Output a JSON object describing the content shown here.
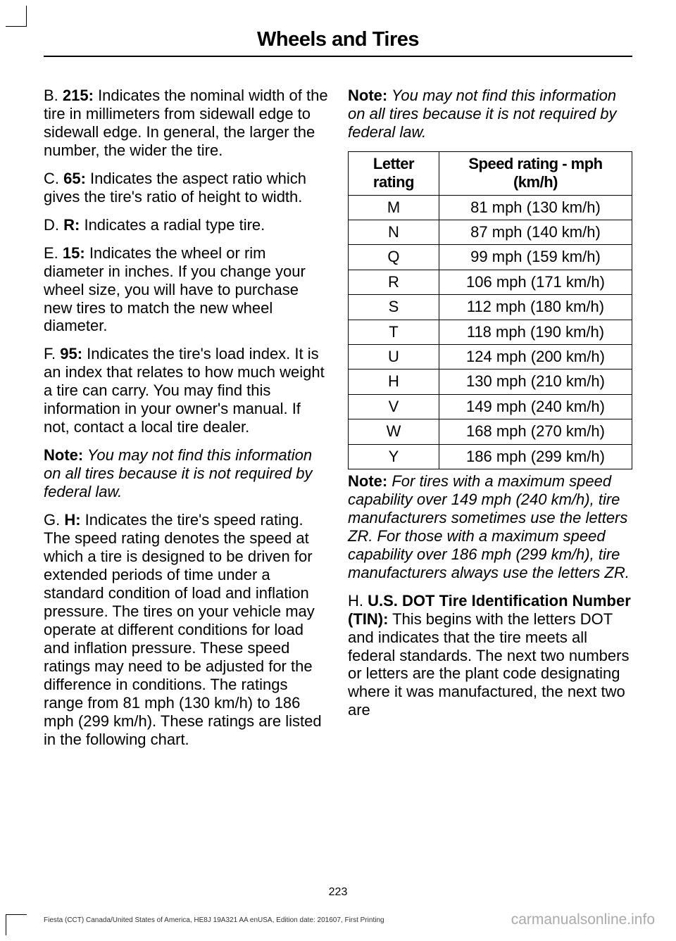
{
  "header": {
    "title": "Wheels and Tires"
  },
  "left": {
    "p1": {
      "pre": "B. ",
      "bold": "215:",
      "post": " Indicates the nominal width of the tire in millimeters from sidewall edge to sidewall edge. In general, the larger the number, the wider the tire."
    },
    "p2": {
      "pre": "C. ",
      "bold": "65:",
      "post": " Indicates the aspect ratio which gives the tire's ratio of height to width."
    },
    "p3": {
      "pre": "D. ",
      "bold": "R:",
      "post": " Indicates a radial type tire."
    },
    "p4": {
      "pre": "E. ",
      "bold": "15:",
      "post": " Indicates the wheel or rim diameter in inches. If you change your wheel size, you will have to purchase new tires to match the new wheel diameter."
    },
    "p5": {
      "pre": "F. ",
      "bold": "95:",
      "post": " Indicates the tire's load index. It is an index that relates to how much weight a tire can carry. You may find this information in your owner's manual. If not, contact a local tire dealer."
    },
    "note1": {
      "bold": "Note:",
      "post": " You may not find this information on all tires because it is not required by federal law."
    },
    "p6": {
      "pre": "G. ",
      "bold": "H:",
      "post": " Indicates the tire's speed rating. The speed rating denotes the speed at which a tire is designed to be driven for extended periods of time under a standard condition of load and inflation pressure. The tires on your vehicle may operate at different conditions for load and inflation pressure. These speed ratings may need to be adjusted for the difference in conditions. The ratings range from 81 mph (130 km/h) to 186 mph (299 km/h). These ratings are listed in the following chart."
    }
  },
  "right": {
    "note1": {
      "bold": "Note:",
      "post": " You may not find this information on all tires because it is not required by federal law."
    },
    "table": {
      "h1": "Letter rating",
      "h2": "Speed rating - mph (km/h)",
      "rows": [
        {
          "l": "M",
          "s": "81 mph (130 km/h)"
        },
        {
          "l": "N",
          "s": "87 mph (140 km/h)"
        },
        {
          "l": "Q",
          "s": "99 mph (159 km/h)"
        },
        {
          "l": "R",
          "s": "106 mph (171 km/h)"
        },
        {
          "l": "S",
          "s": "112 mph (180 km/h)"
        },
        {
          "l": "T",
          "s": "118 mph (190 km/h)"
        },
        {
          "l": "U",
          "s": "124 mph (200 km/h)"
        },
        {
          "l": "H",
          "s": "130 mph (210 km/h)"
        },
        {
          "l": "V",
          "s": "149 mph (240 km/h)"
        },
        {
          "l": "W",
          "s": "168 mph (270 km/h)"
        },
        {
          "l": "Y",
          "s": "186 mph (299 km/h)"
        }
      ]
    },
    "note2": {
      "bold": "Note:",
      "post": " For tires with a maximum speed capability over 149 mph (240 km/h), tire manufacturers sometimes use the letters ZR. For those with a maximum speed capability over 186 mph (299 km/h), tire manufacturers always use the letters ZR."
    },
    "p_h": {
      "pre": "H. ",
      "bold": "U.S. DOT Tire Identification Number (TIN):",
      "post": " This begins with the letters DOT and indicates that the tire meets all federal standards. The next two numbers or letters are the plant code designating where it was manufactured, the next two are"
    }
  },
  "footer": {
    "page": "223",
    "left": "Fiesta (CCT) Canada/United States of America, HE8J 19A321 AA enUSA, Edition date: 201607, First Printing",
    "right": "carmanualsonline.info"
  }
}
